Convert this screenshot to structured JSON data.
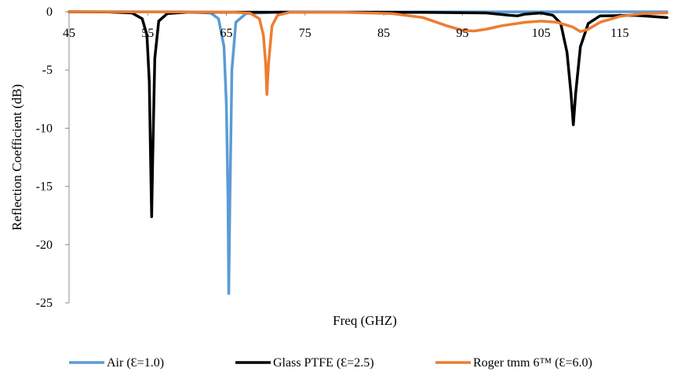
{
  "chart_data": {
    "type": "line",
    "title": "",
    "xlabel": "Freq (GHZ)",
    "ylabel": "Reflection Coefficient (dB)",
    "xlim": [
      45,
      121
    ],
    "ylim": [
      -25,
      0
    ],
    "x_ticks": [
      45,
      55,
      65,
      75,
      85,
      95,
      105,
      115
    ],
    "x_tick_labels": [
      "45",
      "55",
      "65",
      "75",
      "85",
      "95",
      "105",
      "115"
    ],
    "y_ticks": [
      0,
      -5,
      -10,
      -15,
      -20,
      -25
    ],
    "y_tick_labels": [
      "0",
      "-5",
      "-10",
      "-15",
      "-20",
      "-25"
    ],
    "grid": false,
    "legend_position": "bottom",
    "series": [
      {
        "name": "Air (Ɛ=1.0)",
        "color": "#5b9bd5",
        "points": [
          [
            45,
            0
          ],
          [
            60,
            -0.01
          ],
          [
            63,
            -0.1
          ],
          [
            64,
            -0.6
          ],
          [
            64.7,
            -3
          ],
          [
            65,
            -8
          ],
          [
            65.2,
            -16
          ],
          [
            65.3,
            -24.2
          ],
          [
            65.45,
            -16
          ],
          [
            65.7,
            -5
          ],
          [
            66.2,
            -0.9
          ],
          [
            67.5,
            -0.15
          ],
          [
            72,
            -0.02
          ],
          [
            121,
            0
          ]
        ]
      },
      {
        "name": "Glass PTFE (Ɛ=2.5)",
        "color": "#000000",
        "points": [
          [
            45,
            0
          ],
          [
            50,
            -0.02
          ],
          [
            53,
            -0.1
          ],
          [
            54.3,
            -0.6
          ],
          [
            54.9,
            -2
          ],
          [
            55.2,
            -6
          ],
          [
            55.35,
            -12
          ],
          [
            55.5,
            -17.6
          ],
          [
            55.65,
            -12
          ],
          [
            55.9,
            -4
          ],
          [
            56.4,
            -0.8
          ],
          [
            57.5,
            -0.15
          ],
          [
            60,
            -0.03
          ],
          [
            90,
            -0.05
          ],
          [
            98,
            -0.1
          ],
          [
            101,
            -0.3
          ],
          [
            102,
            -0.35
          ],
          [
            103,
            -0.2
          ],
          [
            105,
            -0.1
          ],
          [
            106.5,
            -0.3
          ],
          [
            107.5,
            -1
          ],
          [
            108.3,
            -3.5
          ],
          [
            108.8,
            -7
          ],
          [
            109.1,
            -9.7
          ],
          [
            109.4,
            -7
          ],
          [
            110,
            -3
          ],
          [
            111,
            -1
          ],
          [
            112.5,
            -0.35
          ],
          [
            117,
            -0.3
          ],
          [
            121,
            -0.5
          ]
        ]
      },
      {
        "name": "Roger tmm 6™ (Ɛ=6.0)",
        "color": "#ed7d31",
        "points": [
          [
            45,
            0
          ],
          [
            65,
            -0.02
          ],
          [
            68,
            -0.12
          ],
          [
            69.2,
            -0.6
          ],
          [
            69.7,
            -2
          ],
          [
            70,
            -4.5
          ],
          [
            70.15,
            -7.1
          ],
          [
            70.35,
            -4.5
          ],
          [
            70.8,
            -1.2
          ],
          [
            71.5,
            -0.3
          ],
          [
            73,
            -0.05
          ],
          [
            80,
            -0.05
          ],
          [
            86,
            -0.15
          ],
          [
            90,
            -0.5
          ],
          [
            93,
            -1.2
          ],
          [
            95,
            -1.6
          ],
          [
            96.5,
            -1.65
          ],
          [
            98,
            -1.5
          ],
          [
            100,
            -1.2
          ],
          [
            103,
            -0.9
          ],
          [
            105,
            -0.8
          ],
          [
            107,
            -0.9
          ],
          [
            109,
            -1.3
          ],
          [
            110,
            -1.7
          ],
          [
            111,
            -1.5
          ],
          [
            112.5,
            -0.9
          ],
          [
            115,
            -0.4
          ],
          [
            118,
            -0.15
          ],
          [
            121,
            -0.1
          ]
        ]
      }
    ]
  }
}
